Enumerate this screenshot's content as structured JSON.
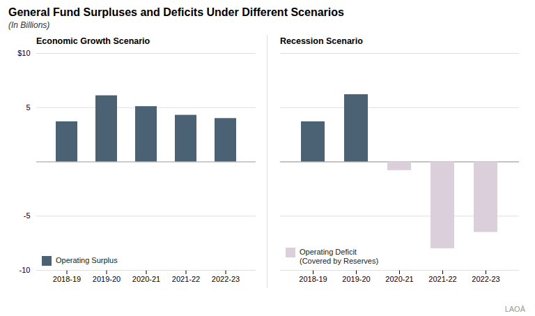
{
  "title": "General Fund Surpluses and Deficits Under Different Scenarios",
  "subtitle": "(In Billions)",
  "annotations": [
    "LAOÂ"
  ],
  "chart_data": [
    {
      "type": "bar",
      "title": "Economic Growth Scenario",
      "categories": [
        "2018-19",
        "2019-20",
        "2020-21",
        "2021-22",
        "2022-23"
      ],
      "series": [
        {
          "name": "Operating Surplus",
          "color": "#4A6274",
          "values": [
            3.7,
            6.1,
            5.1,
            4.3,
            4.0
          ]
        }
      ],
      "ylim": [
        -10,
        10
      ],
      "yticks": [
        -10,
        -5,
        5,
        {
          "value": 10,
          "label": "$10"
        }
      ],
      "grid": true,
      "legend": "lower left"
    },
    {
      "type": "bar",
      "title": "Recession Scenario",
      "categories": [
        "2018-19",
        "2019-20",
        "2020-21",
        "2021-22",
        "2022-23"
      ],
      "series": [
        {
          "color": "#4A6274",
          "values": [
            3.7,
            6.2,
            null,
            null,
            null
          ]
        },
        {
          "name": "Operating Deficit\n(Covered by Reserves)",
          "color": "#DCCFDC",
          "values": [
            null,
            null,
            -0.8,
            -8.0,
            -6.5
          ]
        }
      ],
      "ylim": [
        -10,
        10
      ],
      "yticks": [
        -10,
        -5,
        0,
        5,
        10
      ],
      "grid": true,
      "tick_labels": "x",
      "legend": "lower left"
    }
  ]
}
